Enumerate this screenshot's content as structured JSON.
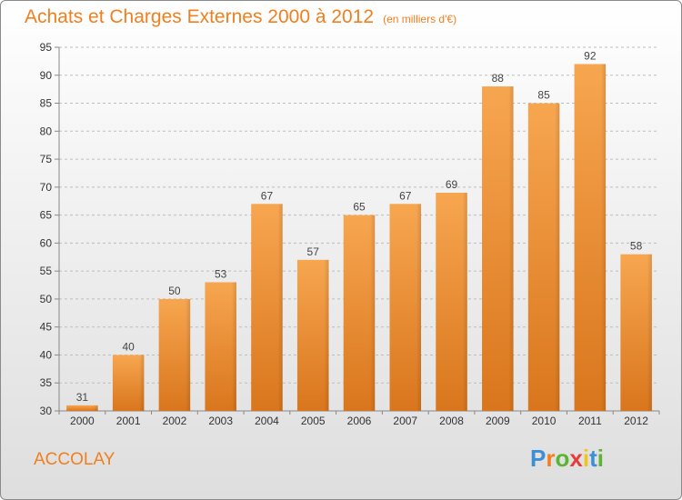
{
  "header": {
    "title": "Achats et Charges Externes 2000 à 2012",
    "unit": "(en milliers d'€)"
  },
  "footer": {
    "city": "ACCOLAY",
    "logo": "Proxiti"
  },
  "colors": {
    "bar_light": "#f7a650",
    "bar_dark": "#d9761d",
    "title": "#f07f1f",
    "grid": "#bdbdbd"
  },
  "chart_data": {
    "type": "bar",
    "title": "Achats et Charges Externes 2000 à 2012",
    "subtitle": "(en milliers d'€)",
    "xlabel": "",
    "ylabel": "",
    "categories": [
      "2000",
      "2001",
      "2002",
      "2003",
      "2004",
      "2005",
      "2006",
      "2007",
      "2008",
      "2009",
      "2010",
      "2011",
      "2012"
    ],
    "values": [
      31,
      40,
      50,
      53,
      67,
      57,
      65,
      67,
      69,
      88,
      85,
      92,
      58
    ],
    "ylim": [
      30,
      95
    ],
    "yticks": [
      30,
      35,
      40,
      45,
      50,
      55,
      60,
      65,
      70,
      75,
      80,
      85,
      90,
      95
    ],
    "grid": "horizontal dashed",
    "legend": "none",
    "data_labels": true
  }
}
